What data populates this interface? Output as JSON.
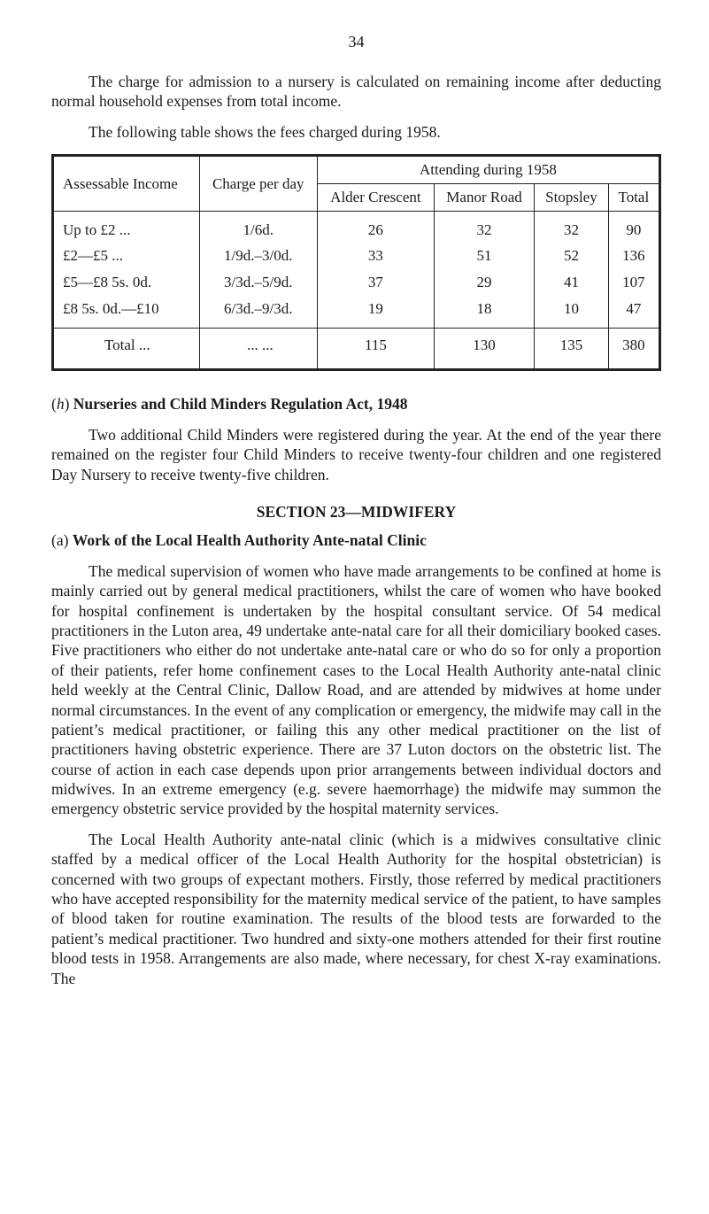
{
  "page_number": "34",
  "para_intro": "The charge for admission to a nursery is calculated on remaining income after deducting normal household expenses from total income.",
  "para_table_intro": "The following table shows the fees charged during 1958.",
  "table": {
    "header": {
      "assessable_income": "Assessable Income",
      "charge_per_day": "Charge per day",
      "attending": "Attending during 1958",
      "alder": "Alder Crescent",
      "manor": "Manor Road",
      "stopsley": "Stopsley",
      "total": "Total"
    },
    "rows": [
      {
        "income_prefix": "Up to £2",
        "charge": "1/6d.",
        "alder": "26",
        "manor": "32",
        "stopsley": "32",
        "total": "90"
      },
      {
        "income_prefix": "£2—£5",
        "charge": "1/9d.–3/0d.",
        "alder": "33",
        "manor": "51",
        "stopsley": "52",
        "total": "136"
      },
      {
        "income_prefix": "£5—£8 5s. 0d.",
        "charge": "3/3d.–5/9d.",
        "alder": "37",
        "manor": "29",
        "stopsley": "41",
        "total": "107"
      },
      {
        "income_prefix": "£8 5s. 0d.—£10",
        "charge": "6/3d.–9/3d.",
        "alder": "19",
        "manor": "18",
        "stopsley": "10",
        "total": "47"
      }
    ],
    "total_row": {
      "label": "Total",
      "alder": "115",
      "manor": "130",
      "stopsley": "135",
      "total": "380"
    }
  },
  "section_h": {
    "label_prefix": "(",
    "label_italic": "h",
    "label_suffix": ") ",
    "title": "Nurseries and Child Minders Regulation Act, 1948",
    "para": "Two additional Child Minders were registered during the year. At the end of the year there remained on the register four Child Minders to receive twenty-four children and one registered Day Nursery to receive twenty-five children."
  },
  "section23": {
    "heading": "SECTION 23—MIDWIFERY",
    "sub_a_prefix": "(",
    "sub_a_italic": "a",
    "sub_a_suffix": ") ",
    "sub_a_title": "Work of the Local Health Authority Ante-natal Clinic",
    "para1": "The medical supervision of women who have made arrangements to be confined at home is mainly carried out by general medical practitioners, whilst the care of women who have booked for hospital confinement is undertaken by the hospital consultant service. Of 54 medical practitioners in the Luton area, 49 undertake ante-natal care for all their domiciliary booked cases. Five practitioners who either do not undertake ante-natal care or who do so for only a proportion of their patients, refer home confinement cases to the Local Health Authority ante-natal clinic held weekly at the Central Clinic, Dallow Road, and are attended by midwives at home under normal circumstances. In the event of any complication or emergency, the midwife may call in the patient’s medical practitioner, or failing this any other medical practitioner on the list of practitioners having obstetric experience. There are 37 Luton doctors on the obstetric list. The course of action in each case depends upon prior arrangements between individual doctors and midwives. In an extreme emergency (e.g. severe haemorrhage) the midwife may summon the emergency obstetric service provided by the hospital maternity services.",
    "para2": "The Local Health Authority ante-natal clinic (which is a midwives consultative clinic staffed by a medical officer of the Local Health Authority for the hospital obstetrician) is concerned with two groups of expectant mothers. Firstly, those referred by medical practitioners who have accepted responsibility for the maternity medical service of the patient, to have samples of blood taken for routine examination. The results of the blood tests are forwarded to the patient’s medical practitioner. Two hundred and sixty-one mothers attended for their first routine blood tests in 1958. Arrange­ments are also made, where necessary, for chest X-ray examinations. The"
  }
}
